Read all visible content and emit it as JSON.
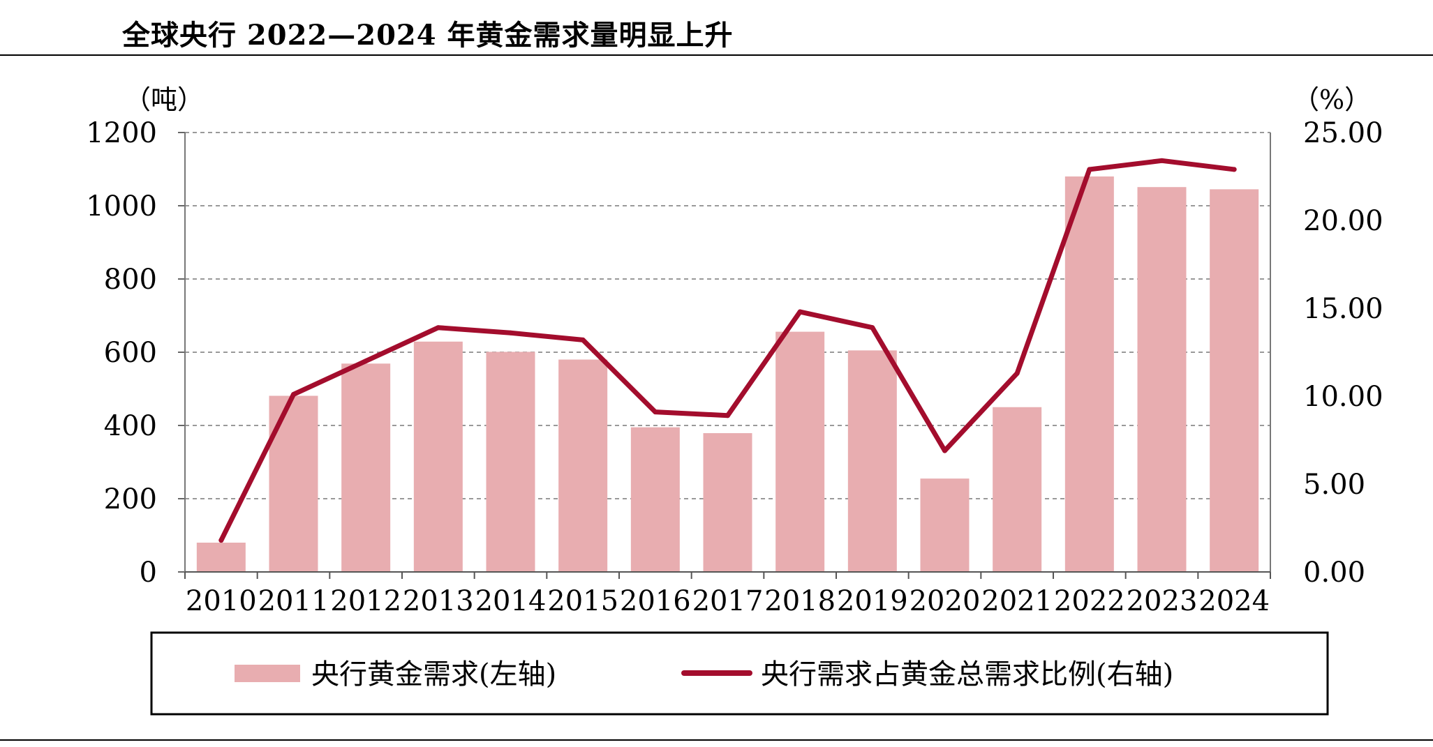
{
  "title": "全球央行 2022—2024 年黄金需求量明显上升",
  "chart_data": {
    "type": "bar+line",
    "categories": [
      "2010",
      "2011",
      "2012",
      "2013",
      "2014",
      "2015",
      "2016",
      "2017",
      "2018",
      "2019",
      "2020",
      "2021",
      "2022",
      "2023",
      "2024"
    ],
    "series": [
      {
        "name": "央行黄金需求(左轴)",
        "type": "bar",
        "axis": "left",
        "color": "#e8adb0",
        "values": [
          80,
          481,
          569,
          629,
          601,
          580,
          395,
          379,
          656,
          605,
          255,
          450,
          1080,
          1051,
          1045
        ]
      },
      {
        "name": "央行需求占黄金总需求比例(右轴)",
        "type": "line",
        "axis": "right",
        "color": "#a30d2d",
        "values": [
          1.8,
          10.1,
          12.0,
          13.9,
          13.6,
          13.2,
          9.1,
          8.9,
          14.8,
          13.9,
          6.9,
          11.3,
          22.9,
          23.4,
          22.9
        ]
      }
    ],
    "left_axis": {
      "unit": "（吨）",
      "range": [
        0,
        1200
      ],
      "ticks": [
        "0",
        "200",
        "400",
        "600",
        "800",
        "1000",
        "1200"
      ]
    },
    "right_axis": {
      "unit": "（%）",
      "range": [
        0,
        25
      ],
      "ticks": [
        "0.00",
        "5.00",
        "10.00",
        "15.00",
        "20.00",
        "25.00"
      ]
    },
    "grid": true,
    "legend_position": "bottom"
  }
}
